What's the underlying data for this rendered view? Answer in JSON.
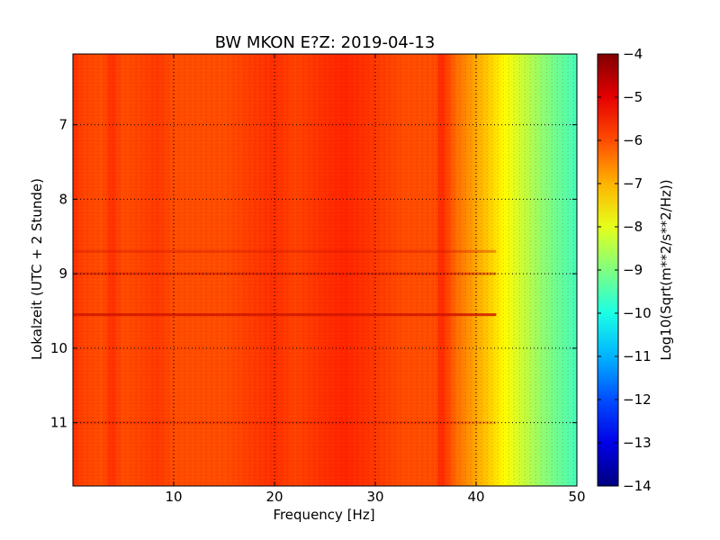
{
  "chart_data": {
    "type": "heatmap",
    "title": "BW MKON E?Z: 2019-04-13",
    "xlabel": "Frequency [Hz]",
    "ylabel": "Lokalzeit (UTC + 2 Stunde)",
    "xlim": [
      0,
      50
    ],
    "ylim": [
      11.85,
      6.05
    ],
    "y_inverted": true,
    "xticks": [
      10,
      20,
      30,
      40,
      50
    ],
    "yticks": [
      7,
      8,
      9,
      10,
      11
    ],
    "grid": true,
    "colormap": "jet",
    "colorbar": {
      "label": "Log10(Sqrt(m**2/s**2/Hz))",
      "range": [
        -14,
        -4
      ],
      "ticks": [
        -4,
        -5,
        -6,
        -7,
        -8,
        -9,
        -10,
        -11,
        -12,
        -13,
        -14
      ]
    },
    "frequency_profile": {
      "frequency_hz": [
        0,
        1,
        3,
        3.8,
        5,
        8.5,
        10,
        12,
        15,
        20,
        22,
        25,
        27,
        30,
        33,
        36,
        36.5,
        38,
        40,
        42,
        44,
        46,
        48,
        50
      ],
      "log10_amplitude": [
        -5.7,
        -5.9,
        -6.0,
        -5.7,
        -6.0,
        -5.8,
        -6.0,
        -6.0,
        -6.0,
        -5.7,
        -5.9,
        -5.7,
        -5.6,
        -5.8,
        -6.0,
        -6.0,
        -5.6,
        -6.3,
        -6.9,
        -7.5,
        -8.1,
        -8.7,
        -9.2,
        -9.6
      ]
    },
    "time_features": [
      {
        "time": 8.7,
        "log10_amplitude_offset": 0.3
      },
      {
        "time": 9.0,
        "log10_amplitude_offset": 0.4
      },
      {
        "time": 9.55,
        "log10_amplitude_offset": 0.7
      },
      {
        "time": 11.0,
        "log10_amplitude_offset": 0.2
      }
    ]
  }
}
